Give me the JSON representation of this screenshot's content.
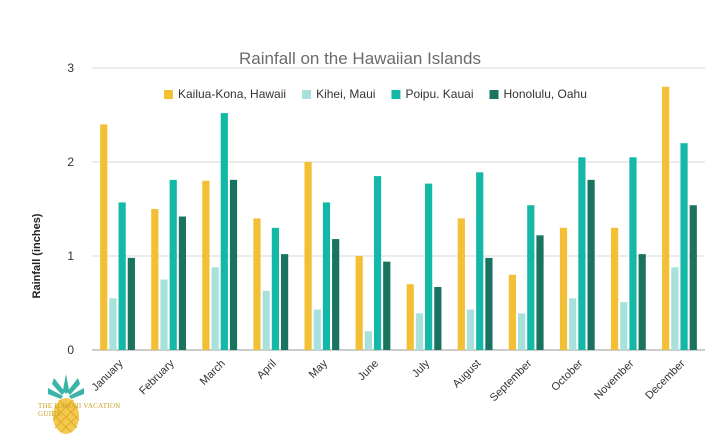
{
  "chart_data": {
    "type": "bar",
    "title": "Rainfall on the Hawaiian Islands",
    "xlabel": "",
    "ylabel": "Rainfall (inches)",
    "ylim": [
      0,
      3
    ],
    "yticks": [
      0,
      1,
      2,
      3
    ],
    "grid": true,
    "legend_position": "top",
    "categories": [
      "January",
      "February",
      "March",
      "April",
      "May",
      "June",
      "July",
      "August",
      "September",
      "October",
      "November",
      "December"
    ],
    "series": [
      {
        "name": "Kailua-Kona, Hawaii",
        "color": "#f2bf35",
        "values": [
          2.4,
          1.5,
          1.8,
          1.4,
          2.0,
          1.0,
          0.7,
          1.4,
          0.8,
          1.3,
          1.3,
          2.8
        ]
      },
      {
        "name": "Kihei, Maui",
        "color": "#a8e0dc",
        "values": [
          0.55,
          0.75,
          0.88,
          0.63,
          0.43,
          0.2,
          0.39,
          0.43,
          0.39,
          0.55,
          0.51,
          0.88
        ]
      },
      {
        "name": "Poipu. Kauai",
        "color": "#14b8a6",
        "values": [
          1.57,
          1.81,
          2.52,
          1.3,
          1.57,
          1.85,
          1.77,
          1.89,
          1.54,
          2.05,
          2.05,
          2.2
        ]
      },
      {
        "name": "Honolulu, Oahu",
        "color": "#1a7360",
        "values": [
          0.98,
          1.42,
          1.81,
          1.02,
          1.18,
          0.94,
          0.67,
          0.98,
          1.22,
          1.81,
          1.02,
          1.54
        ]
      }
    ]
  },
  "logo": {
    "name": "pineapple-logo-icon",
    "text": "THE HAWAII VACATION GUIDE",
    "color": "#c9a227"
  }
}
